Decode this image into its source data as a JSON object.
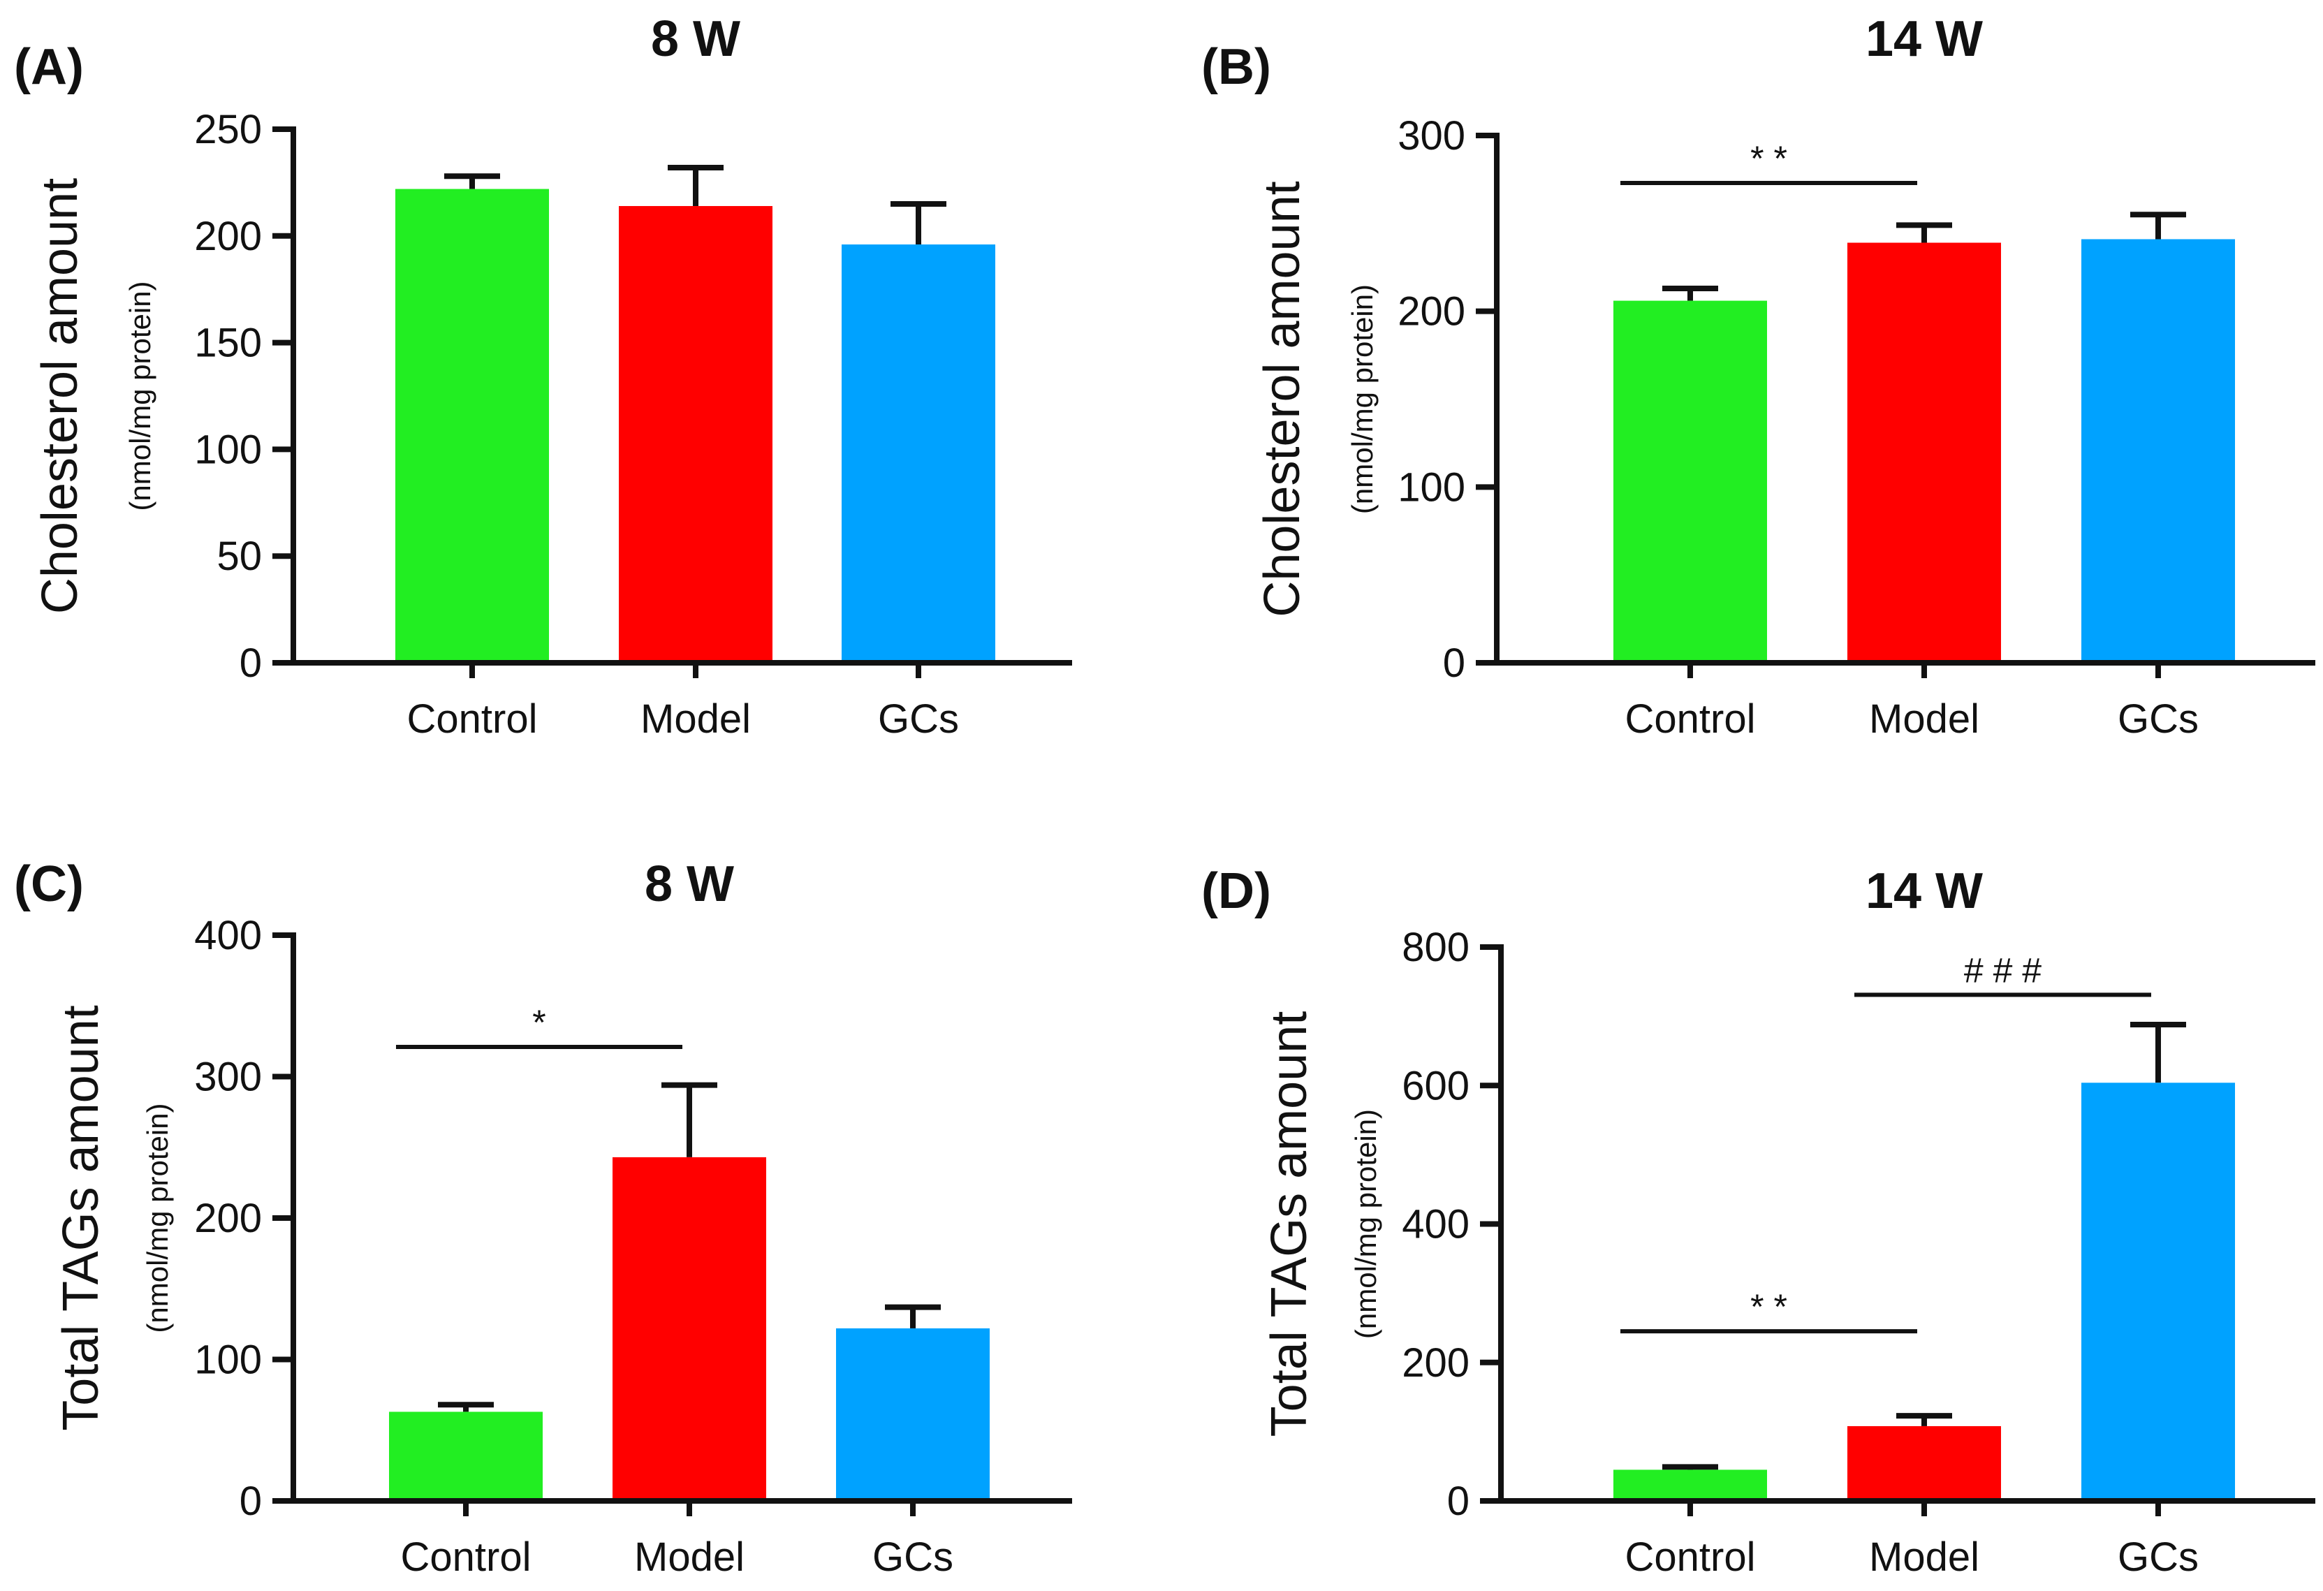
{
  "colors": {
    "Control": "#22ee22",
    "Model": "#ff0000",
    "GCs": "#00a2ff"
  },
  "chart_data": [
    {
      "panel": "(A)",
      "type": "bar",
      "title": "8 W",
      "ylabel": "Cholesterol amount",
      "ysub": "(nmol/mg protein)",
      "categories": [
        "Control",
        "Model",
        "GCs"
      ],
      "values": [
        222,
        214,
        196
      ],
      "errors": [
        6,
        18,
        19
      ],
      "ylim": [
        0,
        250
      ],
      "yticks": [
        0,
        50,
        100,
        150,
        200,
        250
      ],
      "annotations": []
    },
    {
      "panel": "(B)",
      "type": "bar",
      "title": "14 W",
      "ylabel": "Cholesterol amount",
      "ysub": "(nmol/mg protein)",
      "categories": [
        "Control",
        "Model",
        "GCs"
      ],
      "values": [
        206,
        239,
        241
      ],
      "errors": [
        7,
        10,
        14
      ],
      "ylim": [
        0,
        300
      ],
      "yticks": [
        0,
        100,
        200,
        300
      ],
      "annotations": [
        {
          "from": 0,
          "to": 1,
          "y": 273,
          "label": "* *"
        }
      ]
    },
    {
      "panel": "(C)",
      "type": "bar",
      "title": "8 W",
      "ylabel": "Total TAGs amount",
      "ysub": "(nmol/mg protein)",
      "categories": [
        "Control",
        "Model",
        "GCs"
      ],
      "values": [
        63,
        243,
        122
      ],
      "errors": [
        5,
        51,
        15
      ],
      "ylim": [
        0,
        400
      ],
      "yticks": [
        0,
        100,
        200,
        300,
        400
      ],
      "annotations": [
        {
          "from": 0,
          "to": 1,
          "y": 321,
          "label": "*"
        }
      ]
    },
    {
      "panel": "(D)",
      "type": "bar",
      "title": "14 W",
      "ylabel": "Total TAGs amount",
      "ysub": "(nmol/mg protein)",
      "categories": [
        "Control",
        "Model",
        "GCs"
      ],
      "values": [
        45,
        108,
        604
      ],
      "errors": [
        4,
        15,
        84
      ],
      "ylim": [
        0,
        800
      ],
      "yticks": [
        0,
        200,
        400,
        600,
        800
      ],
      "annotations": [
        {
          "from": 0,
          "to": 1,
          "y": 245,
          "label": "* *"
        },
        {
          "from": 1,
          "to": 2,
          "y": 731,
          "label": "# # #"
        }
      ]
    }
  ]
}
